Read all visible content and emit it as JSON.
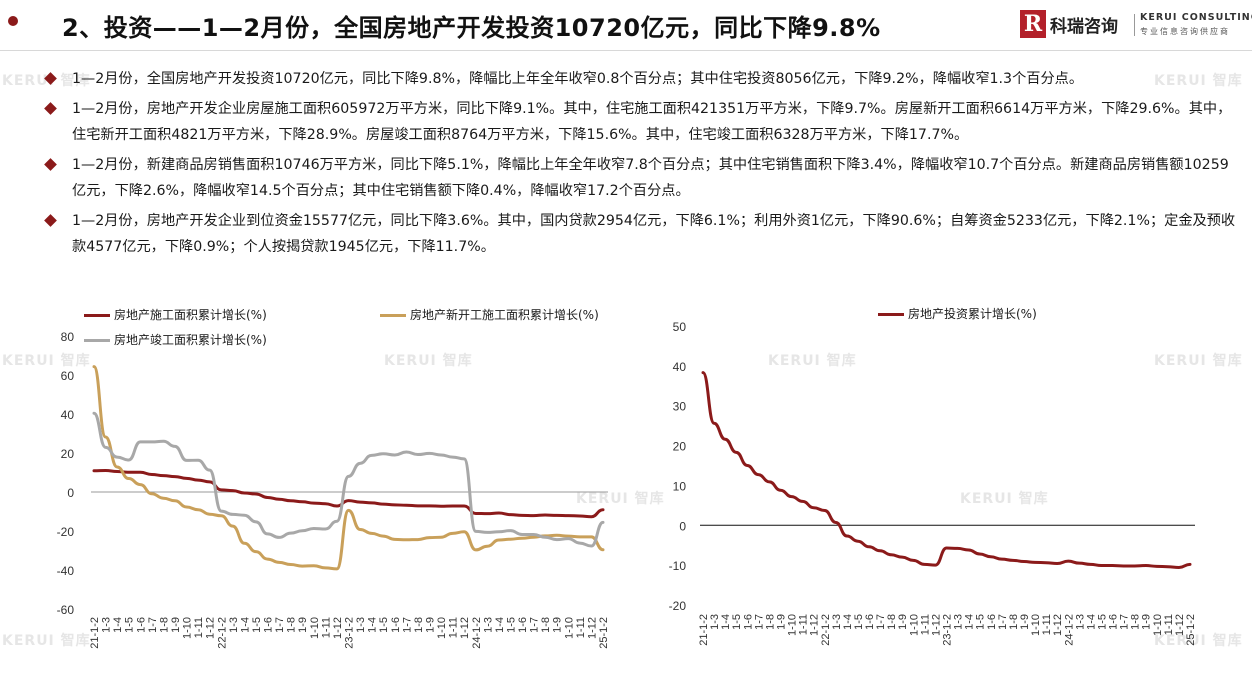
{
  "header": {
    "title": "2、投资——1—2月份，全国房地产开发投资10720亿元，同比下降9.8%",
    "logo_cn": "科瑞咨询",
    "logo_en": "KERUI CONSULTING",
    "logo_sub": "专业信息咨询供应商",
    "logo_mark": "R"
  },
  "watermark": "KERUI 智库",
  "bullets": [
    "1—2月份，全国房地产开发投资10720亿元，同比下降9.8%，降幅比上年全年收窄0.8个百分点；其中住宅投资8056亿元，下降9.2%，降幅收窄1.3个百分点。",
    "1—2月份，房地产开发企业房屋施工面积605972万平方米，同比下降9.1%。其中，住宅施工面积421351万平方米，下降9.7%。房屋新开工面积6614万平方米，下降29.6%。其中，住宅新开工面积4821万平方米，下降28.9%。房屋竣工面积8764万平方米，下降15.6%。其中，住宅竣工面积6328万平方米，下降17.7%。",
    "1—2月份，新建商品房销售面积10746万平方米，同比下降5.1%，降幅比上年全年收窄7.8个百分点；其中住宅销售面积下降3.4%，降幅收窄10.7个百分点。新建商品房销售额10259亿元，下降2.6%，降幅收窄14.5个百分点；其中住宅销售额下降0.4%，降幅收窄17.2个百分点。",
    "1—2月份，房地产开发企业到位资金15577亿元，同比下降3.6%。其中，国内贷款2954亿元，下降6.1%；利用外资1亿元，下降90.6%；自筹资金5233亿元，下降2.1%；定金及预收款4577亿元，下降0.9%；个人按揭贷款1945亿元，下降11.7%。"
  ],
  "chart_data": [
    {
      "type": "line",
      "title": "",
      "xlabel": "",
      "ylabel": "",
      "ylim": [
        -60,
        80
      ],
      "yticks": [
        -60,
        -40,
        -20,
        0,
        20,
        40,
        60,
        80
      ],
      "grid": false,
      "legend_position": "top",
      "x": [
        "21-1-2",
        "21-3",
        "21-4",
        "21-5",
        "21-6",
        "21-7",
        "21-8",
        "21-9",
        "21-10",
        "21-11",
        "21-12",
        "22-1-2",
        "22-3",
        "22-4",
        "22-5",
        "22-6",
        "22-7",
        "22-8",
        "22-9",
        "22-10",
        "22-11",
        "22-12",
        "23-1-2",
        "23-3",
        "23-4",
        "23-5",
        "23-6",
        "23-7",
        "23-8",
        "23-9",
        "23-10",
        "23-11",
        "23-12",
        "24-1-2",
        "24-3",
        "24-4",
        "24-5",
        "24-6",
        "24-7",
        "24-8",
        "24-9",
        "24-10",
        "24-11",
        "24-12",
        "25-1-2"
      ],
      "x_tick_labels": [
        "21-1-2",
        "1-3",
        "1-4",
        "1-5",
        "1-6",
        "1-7",
        "1-8",
        "1-9",
        "1-10",
        "1-11",
        "1-12",
        "22-1-2",
        "1-3",
        "1-4",
        "1-5",
        "1-6",
        "1-7",
        "1-8",
        "1-9",
        "1-10",
        "1-11",
        "1-12",
        "23-1-2",
        "1-3",
        "1-4",
        "1-5",
        "1-6",
        "1-7",
        "1-8",
        "1-9",
        "1-10",
        "1-11",
        "1-12",
        "24-1-2",
        "1-3",
        "1-4",
        "1-5",
        "1-6",
        "1-7",
        "1-8",
        "1-9",
        "1-10",
        "1-11",
        "1-12",
        "25-1-2"
      ],
      "series": [
        {
          "name": "房地产施工面积累计增长(%)",
          "color": "#8b1a1a",
          "values": [
            10.9,
            11.0,
            10.5,
            10.1,
            10.1,
            9.0,
            8.4,
            7.9,
            7.0,
            6.1,
            5.2,
            1.1,
            0.7,
            -0.5,
            -1.0,
            -2.8,
            -3.7,
            -4.5,
            -5.0,
            -5.7,
            -6.0,
            -7.2,
            -4.4,
            -5.2,
            -5.6,
            -6.2,
            -6.6,
            -6.8,
            -7.1,
            -7.1,
            -7.3,
            -7.2,
            -7.2,
            -11.0,
            -11.1,
            -10.8,
            -11.6,
            -12.0,
            -12.1,
            -11.8,
            -12.0,
            -12.1,
            -12.3,
            -12.7,
            -9.1
          ]
        },
        {
          "name": "房地产新开工施工面积累计增长(%)",
          "color": "#c9a05a",
          "values": [
            64.3,
            28.2,
            12.8,
            6.9,
            3.8,
            -0.9,
            -3.2,
            -4.5,
            -7.7,
            -9.1,
            -11.4,
            -12.2,
            -17.5,
            -26.3,
            -30.6,
            -34.4,
            -36.1,
            -37.2,
            -38.0,
            -37.8,
            -38.9,
            -39.4,
            -9.4,
            -19.2,
            -21.2,
            -22.6,
            -24.3,
            -24.5,
            -24.4,
            -23.4,
            -23.2,
            -21.2,
            -20.4,
            -29.7,
            -27.8,
            -24.6,
            -24.2,
            -23.7,
            -23.2,
            -22.5,
            -22.2,
            -22.6,
            -23.0,
            -23.0,
            -29.6
          ]
        },
        {
          "name": "房地产竣工面积累计增长(%)",
          "color": "#a8a8a8",
          "values": [
            40.4,
            22.9,
            17.9,
            16.4,
            25.7,
            25.7,
            26.0,
            23.4,
            16.2,
            16.3,
            11.2,
            -9.8,
            -11.5,
            -11.9,
            -15.3,
            -21.5,
            -23.3,
            -21.1,
            -19.9,
            -18.7,
            -19.0,
            -15.0,
            8.0,
            14.7,
            18.8,
            19.6,
            19.0,
            20.5,
            19.2,
            19.8,
            19.0,
            17.9,
            17.0,
            -20.2,
            -20.7,
            -20.4,
            -19.8,
            -21.8,
            -21.8,
            -23.2,
            -24.4,
            -23.9,
            -26.2,
            -27.7,
            -15.6
          ]
        }
      ]
    },
    {
      "type": "line",
      "title": "",
      "xlabel": "",
      "ylabel": "",
      "ylim": [
        -20,
        50
      ],
      "yticks": [
        -20,
        -10,
        0,
        10,
        20,
        30,
        40,
        50
      ],
      "grid": false,
      "legend_position": "top",
      "x": [
        "21-1-2",
        "21-3",
        "21-4",
        "21-5",
        "21-6",
        "21-7",
        "21-8",
        "21-9",
        "21-10",
        "21-11",
        "21-12",
        "22-1-2",
        "22-3",
        "22-4",
        "22-5",
        "22-6",
        "22-7",
        "22-8",
        "22-9",
        "22-10",
        "22-11",
        "22-12",
        "23-1-2",
        "23-3",
        "23-4",
        "23-5",
        "23-6",
        "23-7",
        "23-8",
        "23-9",
        "23-10",
        "23-11",
        "23-12",
        "24-1-2",
        "24-3",
        "24-4",
        "24-5",
        "24-6",
        "24-7",
        "24-8",
        "24-9",
        "24-10",
        "24-11",
        "24-12",
        "25-1-2"
      ],
      "x_tick_labels": [
        "21-1-2",
        "1-3",
        "1-4",
        "1-5",
        "1-6",
        "1-7",
        "1-8",
        "1-9",
        "1-10",
        "1-11",
        "1-12",
        "22-1-2",
        "1-3",
        "1-4",
        "1-5",
        "1-6",
        "1-7",
        "1-8",
        "1-9",
        "1-10",
        "1-11",
        "1-12",
        "23-1-2",
        "1-3",
        "1-4",
        "1-5",
        "1-6",
        "1-7",
        "1-8",
        "1-9",
        "1-10",
        "1-11",
        "1-12",
        "24-1-2",
        "1-3",
        "1-4",
        "1-5",
        "1-6",
        "1-7",
        "1-8",
        "1-9",
        "1-10",
        "1-11",
        "1-12",
        "25-1-2"
      ],
      "series": [
        {
          "name": "房地产投资累计增长(%)",
          "color": "#8b1a1a",
          "values": [
            38.3,
            25.6,
            21.6,
            18.3,
            15.0,
            12.7,
            10.9,
            8.8,
            7.2,
            6.0,
            4.4,
            3.7,
            0.7,
            -2.7,
            -4.0,
            -5.4,
            -6.4,
            -7.4,
            -8.0,
            -8.8,
            -9.8,
            -10.0,
            -5.7,
            -5.8,
            -6.2,
            -7.2,
            -7.9,
            -8.5,
            -8.8,
            -9.1,
            -9.3,
            -9.4,
            -9.6,
            -9.0,
            -9.5,
            -9.8,
            -10.1,
            -10.1,
            -10.2,
            -10.2,
            -10.1,
            -10.3,
            -10.4,
            -10.6,
            -9.8
          ]
        }
      ]
    }
  ]
}
